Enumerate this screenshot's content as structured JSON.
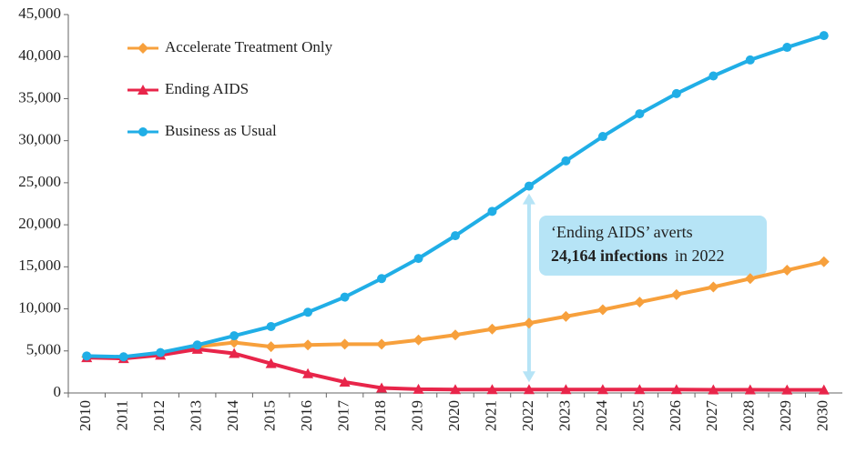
{
  "chart_data": {
    "type": "line",
    "categories": [
      "2010",
      "2011",
      "2012",
      "2013",
      "2014",
      "2015",
      "2016",
      "2017",
      "2018",
      "2019",
      "2020",
      "2021",
      "2022",
      "2023",
      "2024",
      "2025",
      "2026",
      "2027",
      "2028",
      "2029",
      "2030"
    ],
    "series": [
      {
        "name": "Accelerate Treatment Only",
        "color": "#f7a03c",
        "marker": "diamond",
        "values": [
          4300,
          4200,
          4700,
          5500,
          6000,
          5500,
          5700,
          5800,
          5800,
          6300,
          6900,
          7600,
          8300,
          9100,
          9900,
          10800,
          11700,
          12600,
          13600,
          14600,
          15600
        ]
      },
      {
        "name": "Ending AIDS",
        "color": "#e8254a",
        "marker": "triangle",
        "values": [
          4200,
          4100,
          4500,
          5200,
          4700,
          3500,
          2300,
          1300,
          600,
          450,
          400,
          400,
          400,
          400,
          400,
          400,
          400,
          380,
          380,
          370,
          360
        ]
      },
      {
        "name": "Business as Usual",
        "color": "#20aee6",
        "marker": "circle",
        "values": [
          4400,
          4300,
          4800,
          5700,
          6800,
          7900,
          9600,
          11400,
          13600,
          16000,
          18700,
          21600,
          24600,
          27600,
          30500,
          33200,
          35600,
          37700,
          39600,
          41100,
          42500
        ]
      }
    ],
    "ylim": [
      0,
      45000
    ],
    "yticks": [
      0,
      {
        "value": 5000,
        "label": "5,000"
      },
      {
        "value": 10000,
        "label": "10,000"
      },
      {
        "value": 15000,
        "label": "15,000"
      },
      {
        "value": 20000,
        "label": "20,000"
      },
      {
        "value": 25000,
        "label": "25,000"
      },
      {
        "value": 30000,
        "label": "30,000"
      },
      {
        "value": 35000,
        "label": "35,000"
      },
      {
        "value": 40000,
        "label": "40,000"
      },
      {
        "value": 45000,
        "label": "45,000"
      }
    ],
    "annotation": {
      "line1": "‘Ending AIDS’ averts",
      "bold": "24,164 infections",
      "rest": "in 2022"
    }
  }
}
